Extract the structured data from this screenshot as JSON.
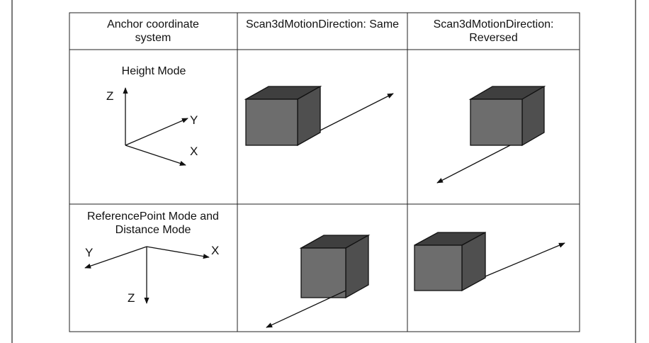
{
  "table": {
    "header": [
      "Anchor coordinate system",
      "Scan3dMotionDirection: Same",
      "Scan3dMotionDirection: Reversed"
    ],
    "rows": [
      {
        "label": "Height Mode",
        "axes": {
          "z": "Z",
          "y": "Y",
          "x": "X"
        }
      },
      {
        "label": "ReferencePoint Mode and Distance Mode",
        "axes": {
          "z": "Z",
          "y": "Y",
          "x": "X"
        }
      }
    ]
  }
}
